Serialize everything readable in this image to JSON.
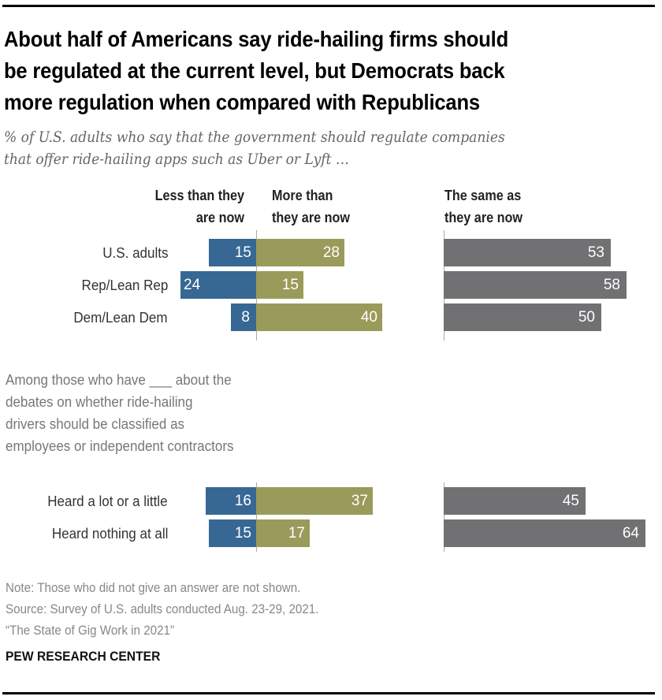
{
  "chart_data": {
    "type": "bar",
    "title": "About half of Americans say ride-hailing firms should be regulated at the current level, but Democrats back more regulation when compared with Republicans",
    "subtitle": "% of U.S. adults who say that the government should regulate companies that offer ride-hailing apps such as Uber or Lyft …",
    "columns": [
      {
        "key": "less",
        "label": "Less than they are now",
        "color": "#376894"
      },
      {
        "key": "more",
        "label": "More than they are now",
        "color": "#9a9b5a"
      },
      {
        "key": "same",
        "label": "The same as they are now",
        "color": "#717173"
      }
    ],
    "groups": [
      {
        "heading": "",
        "rows": [
          {
            "category": "U.S. adults",
            "less": 15,
            "more": 28,
            "same": 53
          },
          {
            "category": "Rep/Lean Rep",
            "less": 24,
            "more": 15,
            "same": 58
          },
          {
            "category": "Dem/Lean Dem",
            "less": 8,
            "more": 40,
            "same": 50
          }
        ]
      },
      {
        "heading": "Among those who have ___ about the debates on whether ride-hailing drivers should be classified as employees or independent contractors",
        "rows": [
          {
            "category": "Heard a lot or a little",
            "less": 16,
            "more": 37,
            "same": 45
          },
          {
            "category": "Heard nothing at all",
            "less": 15,
            "more": 17,
            "same": 64
          }
        ]
      }
    ],
    "xlim": [
      0,
      100
    ],
    "grid": false,
    "legend": "column headers above bars"
  },
  "title_lines": [
    "About half of Americans say ride-hailing firms should",
    "be regulated at the current level, but Democrats back",
    "more regulation when compared with Republicans"
  ],
  "subtitle_lines": [
    "% of U.S. adults who say that the government should regulate companies",
    "that offer ride-hailing apps such as Uber or Lyft …"
  ],
  "col_headers": {
    "less": [
      "Less than they",
      "are now"
    ],
    "more": [
      "More than",
      "they are now"
    ],
    "same": [
      "The same as",
      "they are now"
    ]
  },
  "intro_lines": [
    "Among those who have ___ about the",
    "debates on whether ride-hailing",
    "drivers should be classified as",
    "employees or independent contractors"
  ],
  "footer": {
    "note": "Note: Those who did not give an answer are not shown.",
    "source": "Source: Survey of U.S. adults conducted Aug. 23-29, 2021.",
    "report": "“The State of Gig Work in 2021”",
    "brand": "PEW RESEARCH CENTER"
  }
}
